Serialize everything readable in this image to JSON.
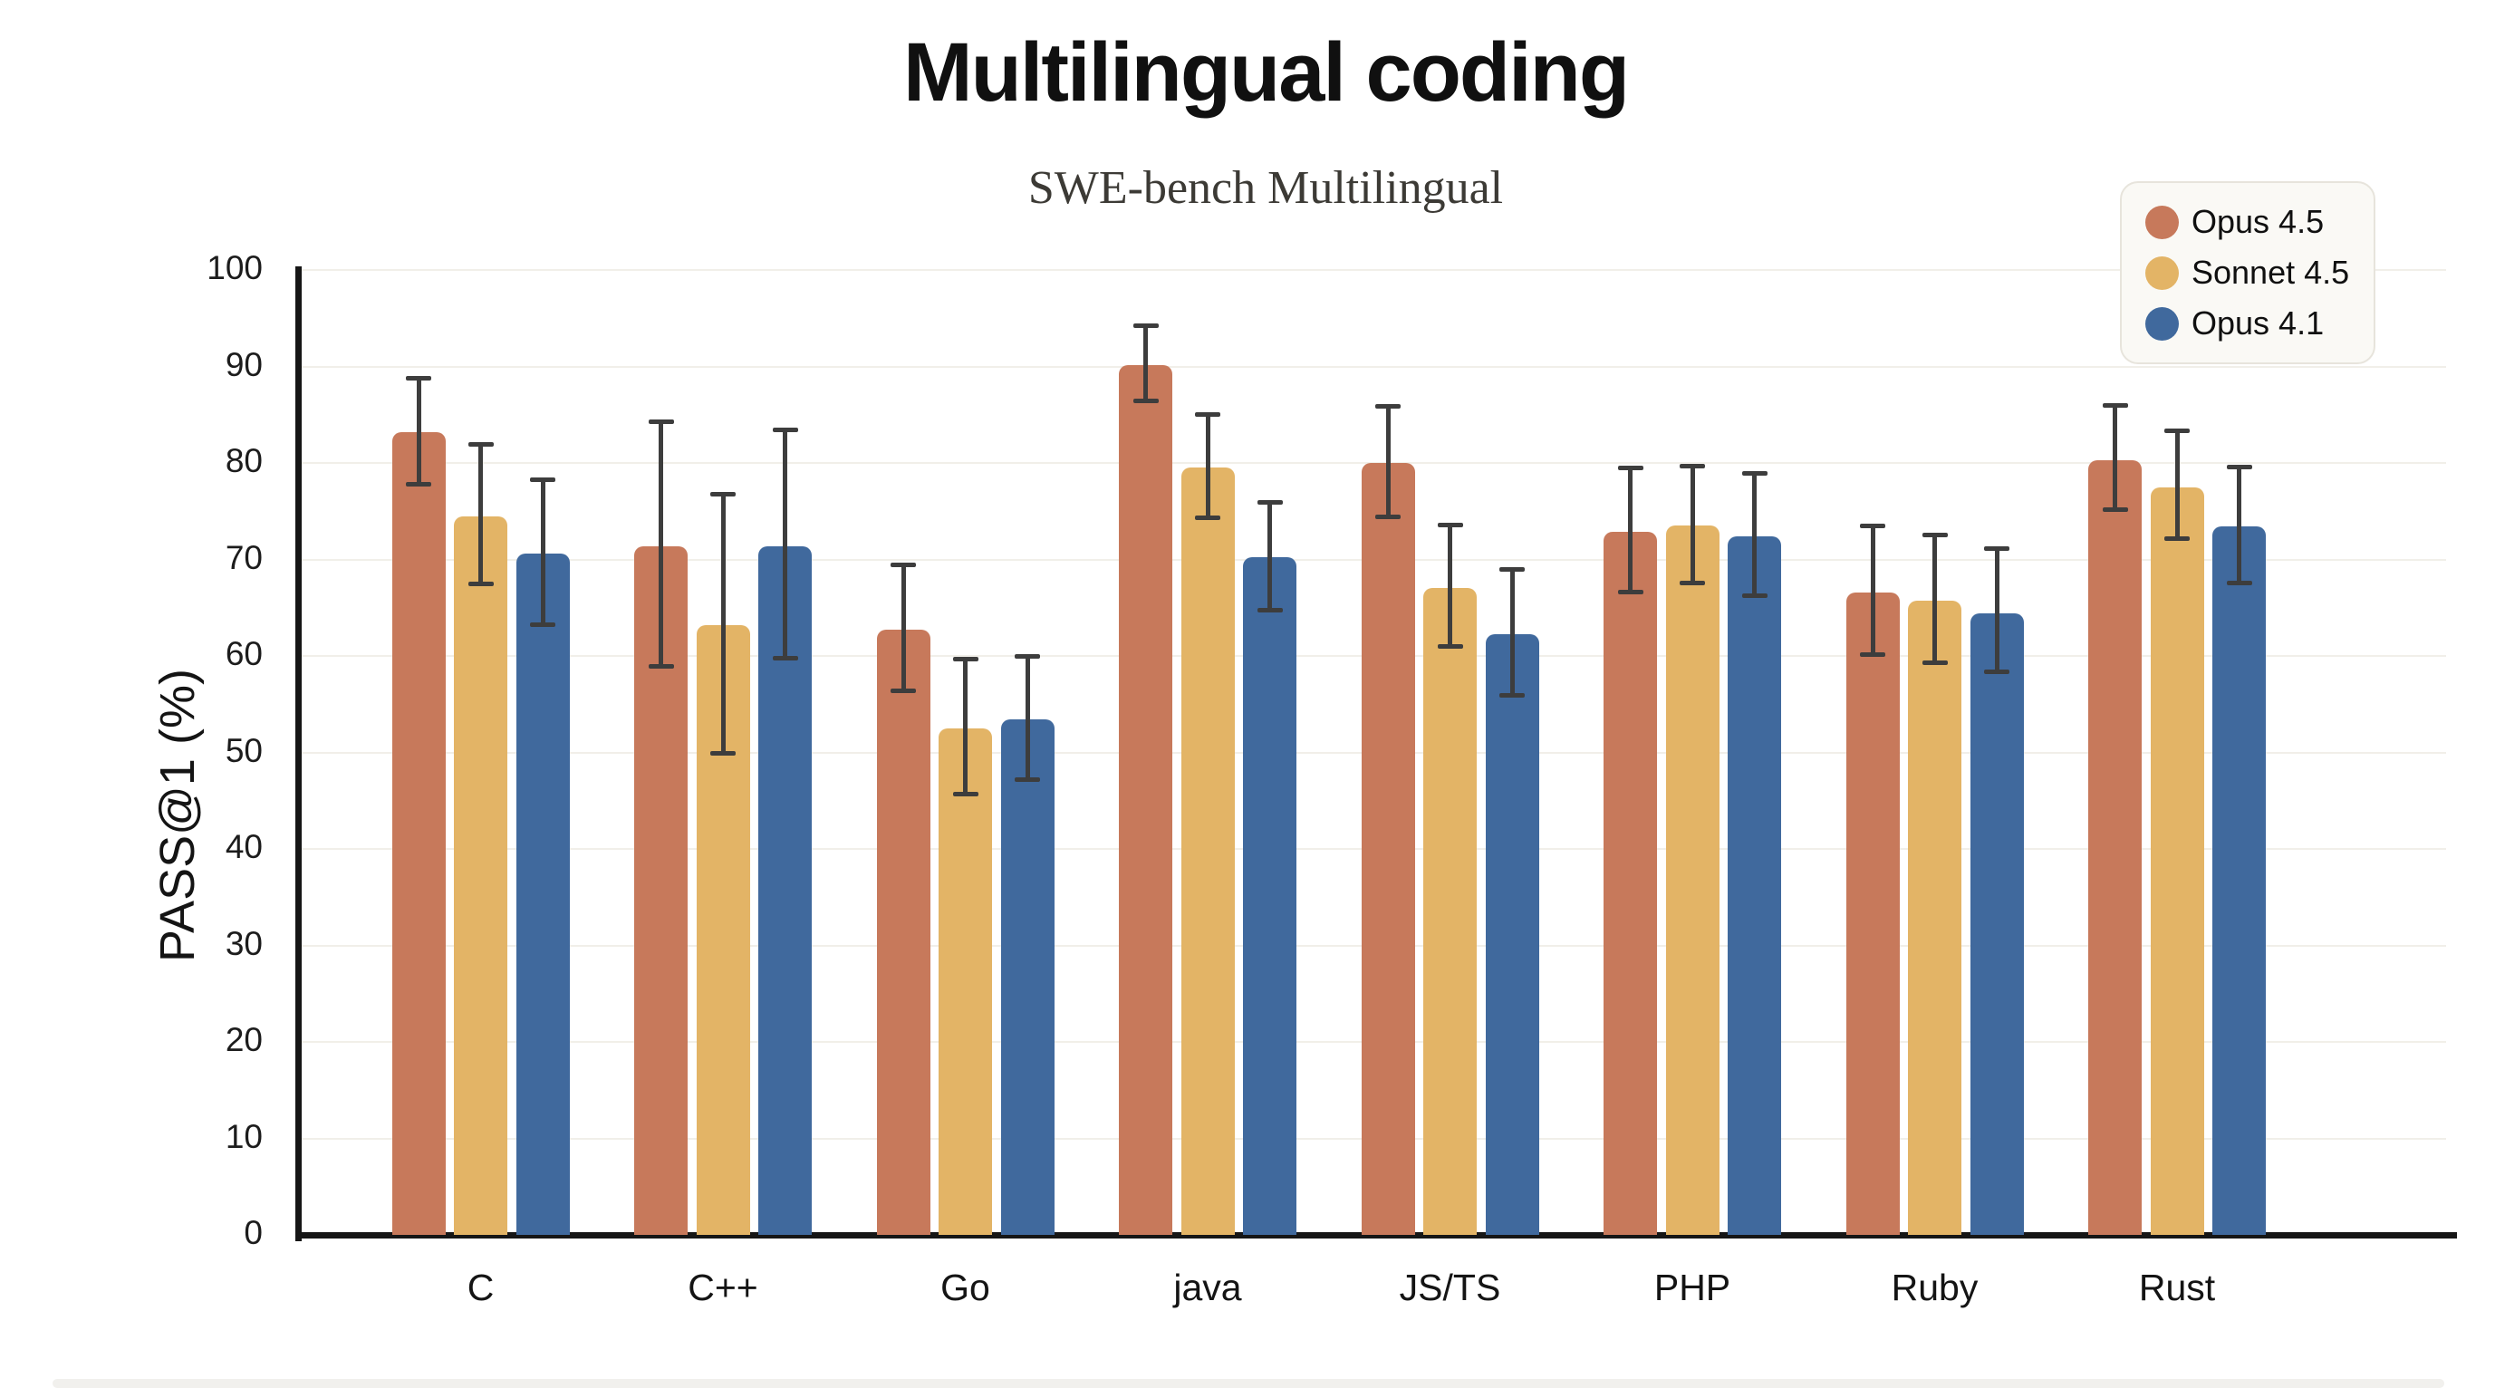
{
  "chart_data": {
    "type": "bar",
    "title": "Multilingual coding",
    "subtitle": "SWE-bench Multilingual",
    "ylabel": "PASS@1 (%)",
    "xlabel": "",
    "ylim": [
      0,
      100
    ],
    "ytick_step": 10,
    "ytick_labels": [
      "0",
      "10",
      "20",
      "30",
      "40",
      "50",
      "60",
      "70",
      "80",
      "90",
      "100"
    ],
    "grid": true,
    "legend_position": "top-right",
    "categories": [
      "C",
      "C++",
      "Go",
      "java",
      "JS/TS",
      "PHP",
      "Ruby",
      "Rust"
    ],
    "series": [
      {
        "name": "Opus 4.5",
        "color": "#C7795B",
        "values": [
          83.2,
          71.4,
          62.7,
          90.1,
          80.0,
          72.9,
          66.6,
          80.3
        ],
        "error_low": [
          77.8,
          59.0,
          56.4,
          86.5,
          74.5,
          66.7,
          60.2,
          75.2
        ],
        "error_high": [
          88.8,
          84.3,
          69.5,
          94.3,
          85.9,
          79.5,
          73.5,
          86.0
        ]
      },
      {
        "name": "Sonnet 4.5",
        "color": "#E3B466",
        "values": [
          74.5,
          63.2,
          52.5,
          79.5,
          67.0,
          73.5,
          65.7,
          77.5
        ],
        "error_low": [
          67.5,
          50.0,
          45.7,
          74.4,
          61.0,
          67.6,
          59.3,
          72.2
        ],
        "error_high": [
          82.0,
          76.8,
          59.7,
          85.1,
          73.6,
          79.7,
          72.6,
          83.4
        ]
      },
      {
        "name": "Opus 4.1",
        "color": "#40699D",
        "values": [
          70.6,
          71.4,
          53.4,
          70.2,
          62.3,
          72.4,
          64.4,
          73.4
        ],
        "error_low": [
          63.3,
          59.8,
          47.2,
          64.8,
          56.0,
          66.3,
          58.4,
          67.6
        ],
        "error_high": [
          78.3,
          83.5,
          60.0,
          76.0,
          69.0,
          79.0,
          71.2,
          79.6
        ]
      }
    ],
    "style_colors": {
      "axis": "#161616",
      "grid": "#f1efe9",
      "error_bar": "#3d3d3d",
      "legend_background": "#faf9f5",
      "legend_border": "#e7e4dc",
      "background": "#ffffff"
    }
  }
}
